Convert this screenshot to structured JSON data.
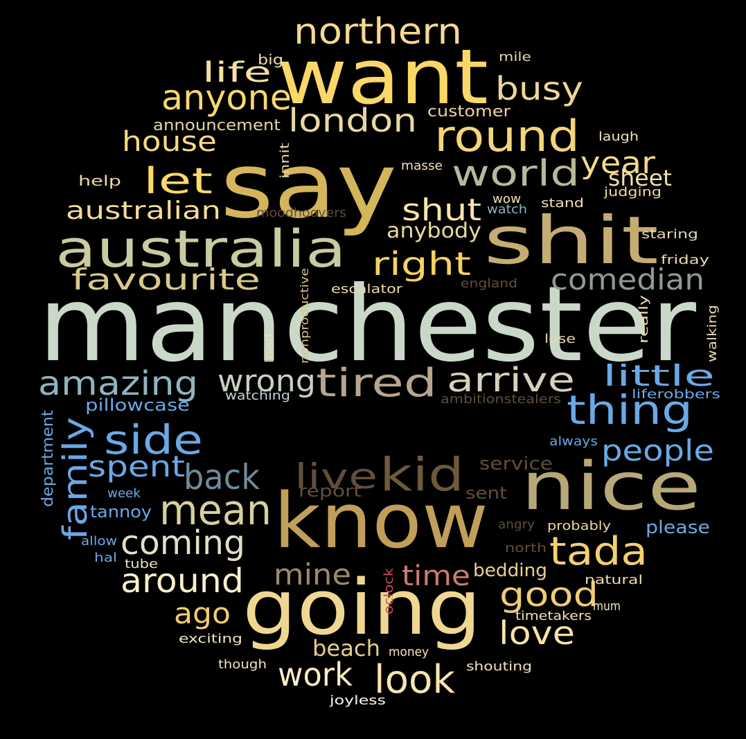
{
  "words": [
    {
      "text": "manchester",
      "color": "#c9d8c8"
    },
    {
      "text": "say",
      "color": "#d4b55a"
    },
    {
      "text": "want",
      "color": "#fbd768"
    },
    {
      "text": "know",
      "color": "#c19f5a"
    },
    {
      "text": "going",
      "color": "#f0d791"
    },
    {
      "text": "nice",
      "color": "#b8a777"
    },
    {
      "text": "shit",
      "color": "#c5ac72"
    },
    {
      "text": "australia",
      "color": "#c9cba0"
    },
    {
      "text": "round",
      "color": "#f3d57a"
    },
    {
      "text": "tired",
      "color": "#b7a68e"
    },
    {
      "text": "kid",
      "color": "#6e5a3a"
    },
    {
      "text": "northern",
      "color": "#f4d98f"
    },
    {
      "text": "world",
      "color": "#b9b79c"
    },
    {
      "text": "thing",
      "color": "#6aa9e6"
    },
    {
      "text": "amazing",
      "color": "#8fb3bf"
    },
    {
      "text": "arrive",
      "color": "#d7d1b9"
    },
    {
      "text": "mean",
      "color": "#d8cf9f"
    },
    {
      "text": "live",
      "color": "#5f4f3a"
    },
    {
      "text": "side",
      "color": "#6aa9e6"
    },
    {
      "text": "let",
      "color": "#ffd86a"
    },
    {
      "text": "anyone",
      "color": "#f7d86f"
    },
    {
      "text": "london",
      "color": "#e8d9a2"
    },
    {
      "text": "busy",
      "color": "#ecd895"
    },
    {
      "text": "favourite",
      "color": "#d9c98a"
    },
    {
      "text": "comedian",
      "color": "#8e9c93"
    },
    {
      "text": "right",
      "color": "#f6d25f"
    },
    {
      "text": "shut",
      "color": "#fbe5a8"
    },
    {
      "text": "wrong",
      "color": "#c7d1c2"
    },
    {
      "text": "tada",
      "color": "#f3d06f"
    },
    {
      "text": "little",
      "color": "#6aa9e6"
    },
    {
      "text": "back",
      "color": "#6f8a9a"
    },
    {
      "text": "people",
      "color": "#6aa9e6"
    },
    {
      "text": "family",
      "color": "#6aa9e6"
    },
    {
      "text": "spent",
      "color": "#6aa9e6"
    },
    {
      "text": "coming",
      "color": "#e3dfc4"
    },
    {
      "text": "around",
      "color": "#fbf0cb"
    },
    {
      "text": "good",
      "color": "#f0cd72"
    },
    {
      "text": "love",
      "color": "#f7e3a6"
    },
    {
      "text": "ago",
      "color": "#f2ce6a"
    },
    {
      "text": "look",
      "color": "#f9e5ad"
    },
    {
      "text": "work",
      "color": "#fbedc6"
    },
    {
      "text": "mine",
      "color": "#9c8b6a"
    },
    {
      "text": "time",
      "color": "#cc7b6e"
    },
    {
      "text": "year",
      "color": "#f3d98a"
    },
    {
      "text": "house",
      "color": "#f7da82"
    },
    {
      "text": "life",
      "color": "#f7e1a1"
    },
    {
      "text": "australian",
      "color": "#f4dc94"
    },
    {
      "text": "anybody",
      "color": "#ead99d"
    },
    {
      "text": "sheet",
      "color": "#efe0a8"
    },
    {
      "text": "beach",
      "color": "#e9cf88"
    },
    {
      "text": "bedding",
      "color": "#ead291"
    },
    {
      "text": "service",
      "color": "#5f4f3a"
    },
    {
      "text": "report",
      "color": "#5f4f3a"
    },
    {
      "text": "sent",
      "color": "#5f4f3a"
    },
    {
      "text": "please",
      "color": "#6aa9e6"
    },
    {
      "text": "customer",
      "color": "#ead6a0"
    },
    {
      "text": "announcement",
      "color": "#e6d7a5"
    },
    {
      "text": "pillowcase",
      "color": "#6aa9e6"
    },
    {
      "text": "department",
      "color": "#6aa9e6"
    },
    {
      "text": "tannoy",
      "color": "#6aa9e6"
    },
    {
      "text": "watching",
      "color": "#c4d4d6"
    },
    {
      "text": "ambitionstealers",
      "color": "#5f4f3a"
    },
    {
      "text": "liferobbers",
      "color": "#6aa9e6"
    },
    {
      "text": "always",
      "color": "#6aa9e6"
    },
    {
      "text": "week",
      "color": "#6aa9e6"
    },
    {
      "text": "allow",
      "color": "#6aa9e6"
    },
    {
      "text": "hal",
      "color": "#6aa9e6"
    },
    {
      "text": "tube",
      "color": "#e8e3c8"
    },
    {
      "text": "help",
      "color": "#ecd9a0"
    },
    {
      "text": "big",
      "color": "#f0dfae"
    },
    {
      "text": "mile",
      "color": "#e7d8ac"
    },
    {
      "text": "innit",
      "color": "#e6d7ac"
    },
    {
      "text": "masse",
      "color": "#f0e2b5"
    },
    {
      "text": "moodhoovers",
      "color": "#5f4f3a"
    },
    {
      "text": "wow",
      "color": "#f0e2b5"
    },
    {
      "text": "watch",
      "color": "#8fb3bf"
    },
    {
      "text": "stand",
      "color": "#f0e2b5"
    },
    {
      "text": "judging",
      "color": "#efdc9d"
    },
    {
      "text": "laugh",
      "color": "#f2e6bd"
    },
    {
      "text": "staring",
      "color": "#e6dab5"
    },
    {
      "text": "friday",
      "color": "#e6dab5"
    },
    {
      "text": "england",
      "color": "#5f4f3a"
    },
    {
      "text": "escalator",
      "color": "#ebdcac"
    },
    {
      "text": "nonproductive",
      "color": "#d8c28a"
    },
    {
      "text": "load",
      "color": "#efdea9"
    },
    {
      "text": "really",
      "color": "#efdea9"
    },
    {
      "text": "lose",
      "color": "#e6dab5"
    },
    {
      "text": "walking",
      "color": "#e6dab5"
    },
    {
      "text": "angry",
      "color": "#5f4f3a"
    },
    {
      "text": "probably",
      "color": "#ead6a0"
    },
    {
      "text": "north",
      "color": "#5f4f3a"
    },
    {
      "text": "oclock",
      "color": "#cc4a5e"
    },
    {
      "text": "natural",
      "color": "#efdfaa"
    },
    {
      "text": "mum",
      "color": "#f2e6bd"
    },
    {
      "text": "timetakers",
      "color": "#f0e2b5"
    },
    {
      "text": "exciting",
      "color": "#f2e6bd"
    },
    {
      "text": "money",
      "color": "#f2e6bd"
    },
    {
      "text": "though",
      "color": "#f2e6bd"
    },
    {
      "text": "shouting",
      "color": "#f2e6bd"
    },
    {
      "text": "joyless",
      "color": "#fbf7ee"
    }
  ]
}
